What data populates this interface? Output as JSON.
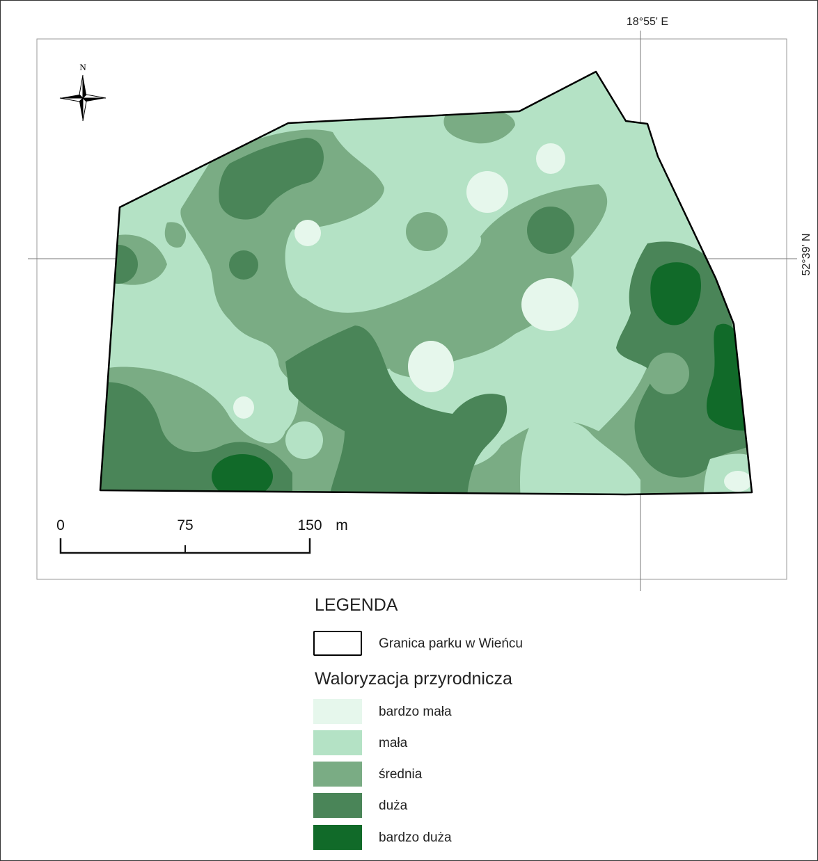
{
  "map": {
    "coord_east": "18°55' E",
    "coord_north": "52°39' N",
    "north_label": "N"
  },
  "scale_bar": {
    "ticks": [
      "0",
      "75",
      "150"
    ],
    "unit": "m"
  },
  "legend": {
    "title": "LEGENDA",
    "boundary": {
      "label": "Granica parku w Wieńcu",
      "stroke": "#000000"
    },
    "subtitle": "Waloryzacja przyrodnicza",
    "classes": [
      {
        "label": "bardzo mała",
        "color": "#e6f7ec"
      },
      {
        "label": "mała",
        "color": "#b4e2c5"
      },
      {
        "label": "średnia",
        "color": "#7aac84"
      },
      {
        "label": "duża",
        "color": "#4a8558"
      },
      {
        "label": "bardzo duża",
        "color": "#116a29"
      }
    ]
  }
}
